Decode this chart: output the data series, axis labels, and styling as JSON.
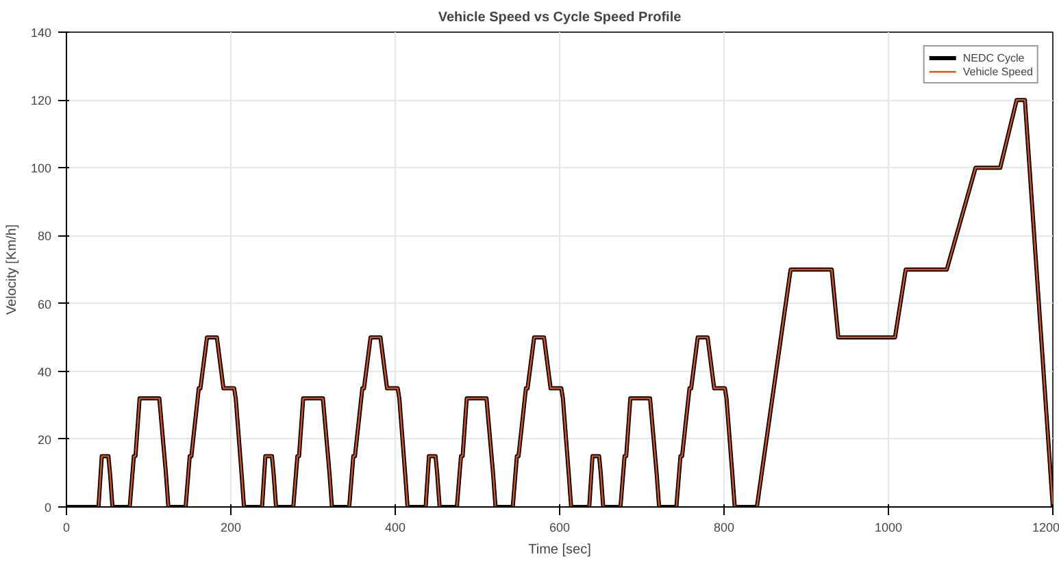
{
  "chart_data": {
    "type": "line",
    "title": "Vehicle Speed vs Cycle Speed Profile",
    "xlabel": "Time [sec]",
    "ylabel": "Velocity [Km/h]",
    "x": [
      0,
      39,
      43,
      51,
      53,
      56,
      77,
      82,
      84,
      89,
      113,
      121,
      124,
      145,
      150,
      152,
      161,
      163,
      171,
      183,
      191,
      204,
      206,
      213,
      216,
      238,
      242,
      250,
      252,
      255,
      276,
      281,
      283,
      288,
      312,
      320,
      323,
      344,
      349,
      351,
      360,
      362,
      370,
      382,
      390,
      403,
      405,
      412,
      415,
      437,
      441,
      449,
      451,
      454,
      475,
      480,
      482,
      487,
      511,
      519,
      522,
      543,
      548,
      550,
      559,
      561,
      569,
      581,
      589,
      602,
      604,
      611,
      614,
      636,
      640,
      648,
      650,
      653,
      674,
      679,
      681,
      686,
      710,
      718,
      721,
      742,
      747,
      749,
      758,
      760,
      768,
      780,
      788,
      801,
      803,
      810,
      813,
      840,
      881,
      931,
      939,
      1008,
      1021,
      1071,
      1106,
      1136,
      1156,
      1166,
      1200
    ],
    "series": [
      {
        "name": "NEDC Cycle",
        "color": "#000000",
        "values": [
          0,
          0,
          15,
          15,
          10,
          0,
          0,
          15,
          15,
          32,
          32,
          10,
          0,
          0,
          15,
          15,
          35,
          35,
          50,
          50,
          35,
          35,
          32,
          10,
          0,
          0,
          15,
          15,
          10,
          0,
          0,
          15,
          15,
          32,
          32,
          10,
          0,
          0,
          15,
          15,
          35,
          35,
          50,
          50,
          35,
          35,
          32,
          10,
          0,
          0,
          15,
          15,
          10,
          0,
          0,
          15,
          15,
          32,
          32,
          10,
          0,
          0,
          15,
          15,
          35,
          35,
          50,
          50,
          35,
          35,
          32,
          10,
          0,
          0,
          15,
          15,
          10,
          0,
          0,
          15,
          15,
          32,
          32,
          10,
          0,
          0,
          15,
          15,
          35,
          35,
          50,
          50,
          35,
          35,
          32,
          10,
          0,
          0,
          70,
          70,
          50,
          50,
          70,
          70,
          100,
          100,
          120,
          120,
          0
        ]
      },
      {
        "name": "Vehicle Speed",
        "color": "#d95319",
        "values": [
          0,
          0,
          15,
          15,
          10,
          0,
          0,
          15,
          15,
          32,
          32,
          10,
          0,
          0,
          15,
          15,
          35,
          35,
          50,
          50,
          35,
          35,
          32,
          10,
          0,
          0,
          15,
          15,
          10,
          0,
          0,
          15,
          15,
          32,
          32,
          10,
          0,
          0,
          15,
          15,
          35,
          35,
          50,
          50,
          35,
          35,
          32,
          10,
          0,
          0,
          15,
          15,
          10,
          0,
          0,
          15,
          15,
          32,
          32,
          10,
          0,
          0,
          15,
          15,
          35,
          35,
          50,
          50,
          35,
          35,
          32,
          10,
          0,
          0,
          15,
          15,
          10,
          0,
          0,
          15,
          15,
          32,
          32,
          10,
          0,
          0,
          15,
          15,
          35,
          35,
          50,
          50,
          35,
          35,
          32,
          10,
          0,
          0,
          70,
          70,
          50,
          50,
          70,
          70,
          100,
          100,
          120,
          120,
          0
        ]
      }
    ],
    "xlim": [
      0,
      1200
    ],
    "xticks": [
      0,
      200,
      400,
      600,
      800,
      1000,
      1200
    ],
    "ylim": [
      0,
      140
    ],
    "yticks": [
      0,
      20,
      40,
      60,
      80,
      100,
      120,
      140
    ],
    "grid": true,
    "legend": "top right",
    "line_style": "solid",
    "marker": "none"
  }
}
